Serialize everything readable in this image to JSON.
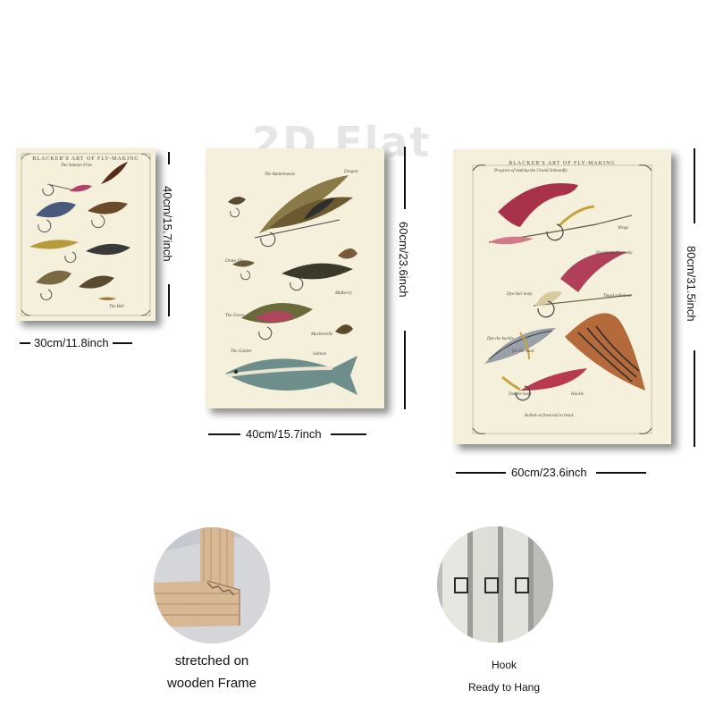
{
  "watermark": "2D Flat",
  "canvases": {
    "small": {
      "title": "BLACKER'S ART OF FLY-MAKING",
      "subtitle": "The Salmon Flies",
      "width_label": "30cm/11.8inch",
      "height_label": "40cm/15.7inch",
      "caption": "The Bell"
    },
    "medium": {
      "title": "The Butterkansie",
      "width_label": "40cm/15.7inch",
      "height_label": "60cm/23.6inch",
      "captions": [
        "Dragon",
        "Drake Fly",
        "Mulberry",
        "The Green",
        "The Golden",
        "Macbrerelle",
        "Salmon"
      ]
    },
    "large": {
      "title": "BLACKER'S ART OF FLY-MAKING",
      "subtitle": "Progress of making the Grand Salmonfly",
      "width_label": "60cm/23.6inch",
      "height_label": "80cm/31.5inch",
      "captions": [
        "Wings",
        "Hackle tied in ready",
        "Dye hair body",
        "Tinsel rolled on",
        "Dye the hackle",
        "for the head",
        "Double body",
        "Hackle",
        "Rolled on from tail to head."
      ]
    }
  },
  "features": {
    "frame": {
      "line1": "stretched on",
      "line2": "wooden Frame"
    },
    "hook": {
      "line1": "Hook",
      "line2": "Ready to Hang"
    }
  },
  "colors": {
    "canvas_bg": "#f5f0dc",
    "wood": "#d8b894",
    "feather_red": "#a8324a",
    "feather_yellow": "#c9a33a"
  }
}
